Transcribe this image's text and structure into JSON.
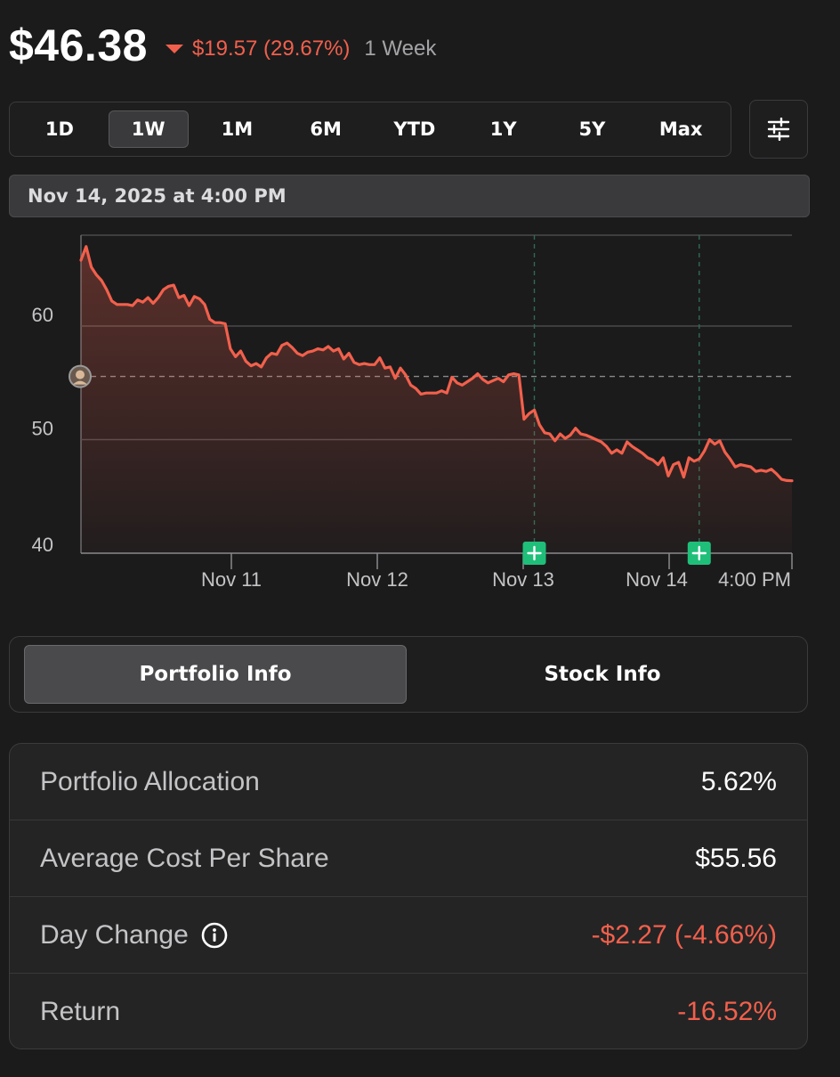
{
  "header": {
    "price": "$46.38",
    "change": "$19.57 (29.67%)",
    "period": "1 Week"
  },
  "range_tabs": [
    "1D",
    "1W",
    "1M",
    "6M",
    "YTD",
    "1Y",
    "5Y",
    "Max"
  ],
  "range_selected": "1W",
  "date_label": "Nov 14, 2025 at 4:00 PM",
  "chart_data": {
    "type": "area",
    "y_ticks": [
      "60",
      "50",
      "40"
    ],
    "ylim": [
      40,
      68
    ],
    "x_ticks": [
      "Nov 11",
      "Nov 12",
      "Nov 13",
      "Nov 14",
      "4:00 PM"
    ],
    "avg_cost_line": 55.56,
    "buy_markers": [
      "Nov 13",
      "Nov 14"
    ],
    "line_color": "#f2604c",
    "values": [
      65.8,
      67.0,
      65.2,
      64.5,
      64.0,
      63.2,
      62.2,
      61.9,
      61.9,
      61.9,
      61.8,
      62.3,
      62.1,
      62.5,
      62.0,
      62.5,
      63.2,
      63.5,
      63.6,
      62.5,
      62.7,
      61.8,
      62.6,
      62.4,
      61.9,
      60.6,
      60.3,
      60.3,
      60.2,
      58.0,
      57.3,
      57.8,
      56.9,
      56.5,
      56.7,
      56.4,
      57.2,
      57.6,
      57.5,
      58.3,
      58.5,
      58.1,
      57.6,
      57.4,
      57.7,
      57.8,
      58.0,
      57.9,
      58.2,
      57.8,
      58.0,
      57.1,
      57.6,
      56.8,
      56.6,
      56.7,
      56.6,
      56.6,
      57.2,
      56.3,
      56.4,
      55.4,
      56.3,
      55.7,
      54.8,
      54.5,
      54.0,
      54.1,
      54.1,
      54.1,
      54.3,
      54.1,
      55.5,
      55.0,
      54.8,
      55.1,
      55.4,
      55.8,
      55.3,
      55.0,
      55.2,
      55.4,
      55.1,
      55.7,
      55.8,
      55.7,
      51.8,
      52.3,
      52.6,
      51.3,
      50.6,
      50.5,
      49.9,
      50.5,
      50.1,
      50.4,
      51.0,
      50.5,
      50.4,
      50.2,
      50.0,
      49.8,
      49.4,
      48.8,
      49.1,
      48.8,
      49.8,
      49.4,
      49.1,
      48.8,
      48.4,
      48.2,
      47.8,
      48.4,
      46.8,
      47.8,
      48.0,
      46.7,
      48.4,
      48.1,
      48.3,
      49.0,
      50.0,
      49.6,
      49.9,
      48.9,
      48.3,
      47.6,
      47.8,
      47.7,
      47.6,
      47.2,
      47.3,
      47.2,
      47.4,
      47.0,
      46.5,
      46.4,
      46.38
    ]
  },
  "tabs": [
    "Portfolio Info",
    "Stock Info"
  ],
  "info": {
    "allocation_label": "Portfolio Allocation",
    "allocation_value": "5.62%",
    "avg_cost_label": "Average Cost Per Share",
    "avg_cost_value": "$55.56",
    "day_change_label": "Day Change",
    "day_change_value": "-$2.27 (-4.66%)",
    "return_label": "Return",
    "return_value": "-16.52%"
  },
  "colors": {
    "negative": "#f2604c",
    "buy_marker": "#1fbf7a",
    "background": "#1b1b1c"
  }
}
